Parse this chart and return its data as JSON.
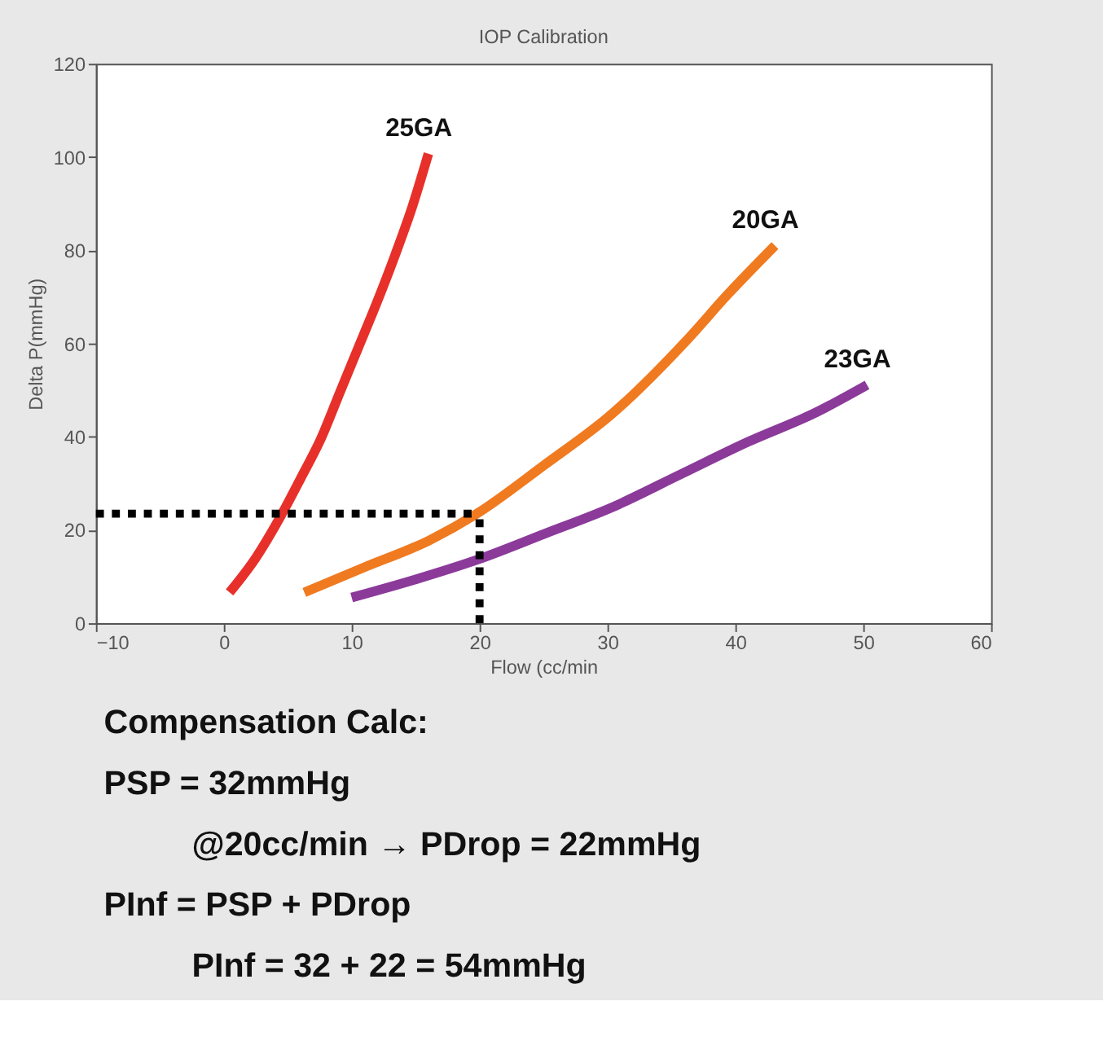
{
  "chart_data": {
    "type": "line",
    "title": "IOP Calibration",
    "xlabel": "Flow (cc/min",
    "ylabel": "Delta P(mmHg)",
    "xlim": [
      -10,
      60
    ],
    "xticks": [
      -10,
      0,
      10,
      20,
      30,
      40,
      50,
      60
    ],
    "ylim": [
      0,
      120
    ],
    "yticks": [
      0,
      20,
      40,
      60,
      80,
      100,
      120
    ],
    "grid": false,
    "legend": false,
    "series": [
      {
        "name": "25GA",
        "color": "#e8302a",
        "x": [
          0.45,
          2.5,
          4.4,
          6,
          7.6,
          9,
          10.5,
          12,
          13.4,
          14.7,
          16
        ],
        "values": [
          6.6,
          14,
          22.7,
          31,
          39.6,
          49,
          59,
          69,
          79,
          89,
          100.7
        ]
      },
      {
        "name": "20GA",
        "color": "#f07a20",
        "x": [
          6.3,
          11,
          16.1,
          19.8,
          25.1,
          30.4,
          36.2,
          39.4,
          43.1
        ],
        "values": [
          6.6,
          12,
          17.8,
          23.5,
          34,
          45,
          60.7,
          70.5,
          81
        ]
      },
      {
        "name": "23GA",
        "color": "#8b3a9a",
        "x": [
          10,
          15,
          19.8,
          25.1,
          30.4,
          35.7,
          41,
          46.3,
          50.3
        ],
        "values": [
          5.5,
          9.4,
          13.6,
          19.2,
          24.9,
          31.9,
          38.9,
          45.2,
          51.1
        ]
      },
      {
        "color": "#000000",
        "line_style": "dotted",
        "x": [
          -10,
          20
        ],
        "values": [
          23.5,
          23.5
        ]
      },
      {
        "color": "#000000",
        "line_style": "dotted",
        "x": [
          20,
          20
        ],
        "values": [
          0,
          23.5
        ]
      }
    ],
    "annotations": [
      "Compensation Calc:",
      "PSP = 32mmHg",
      "@20cc/min → PDrop = 22mmHg",
      "PInf = PSP + PDrop",
      "PInf = 32 + 22 = 54mmHg"
    ]
  }
}
